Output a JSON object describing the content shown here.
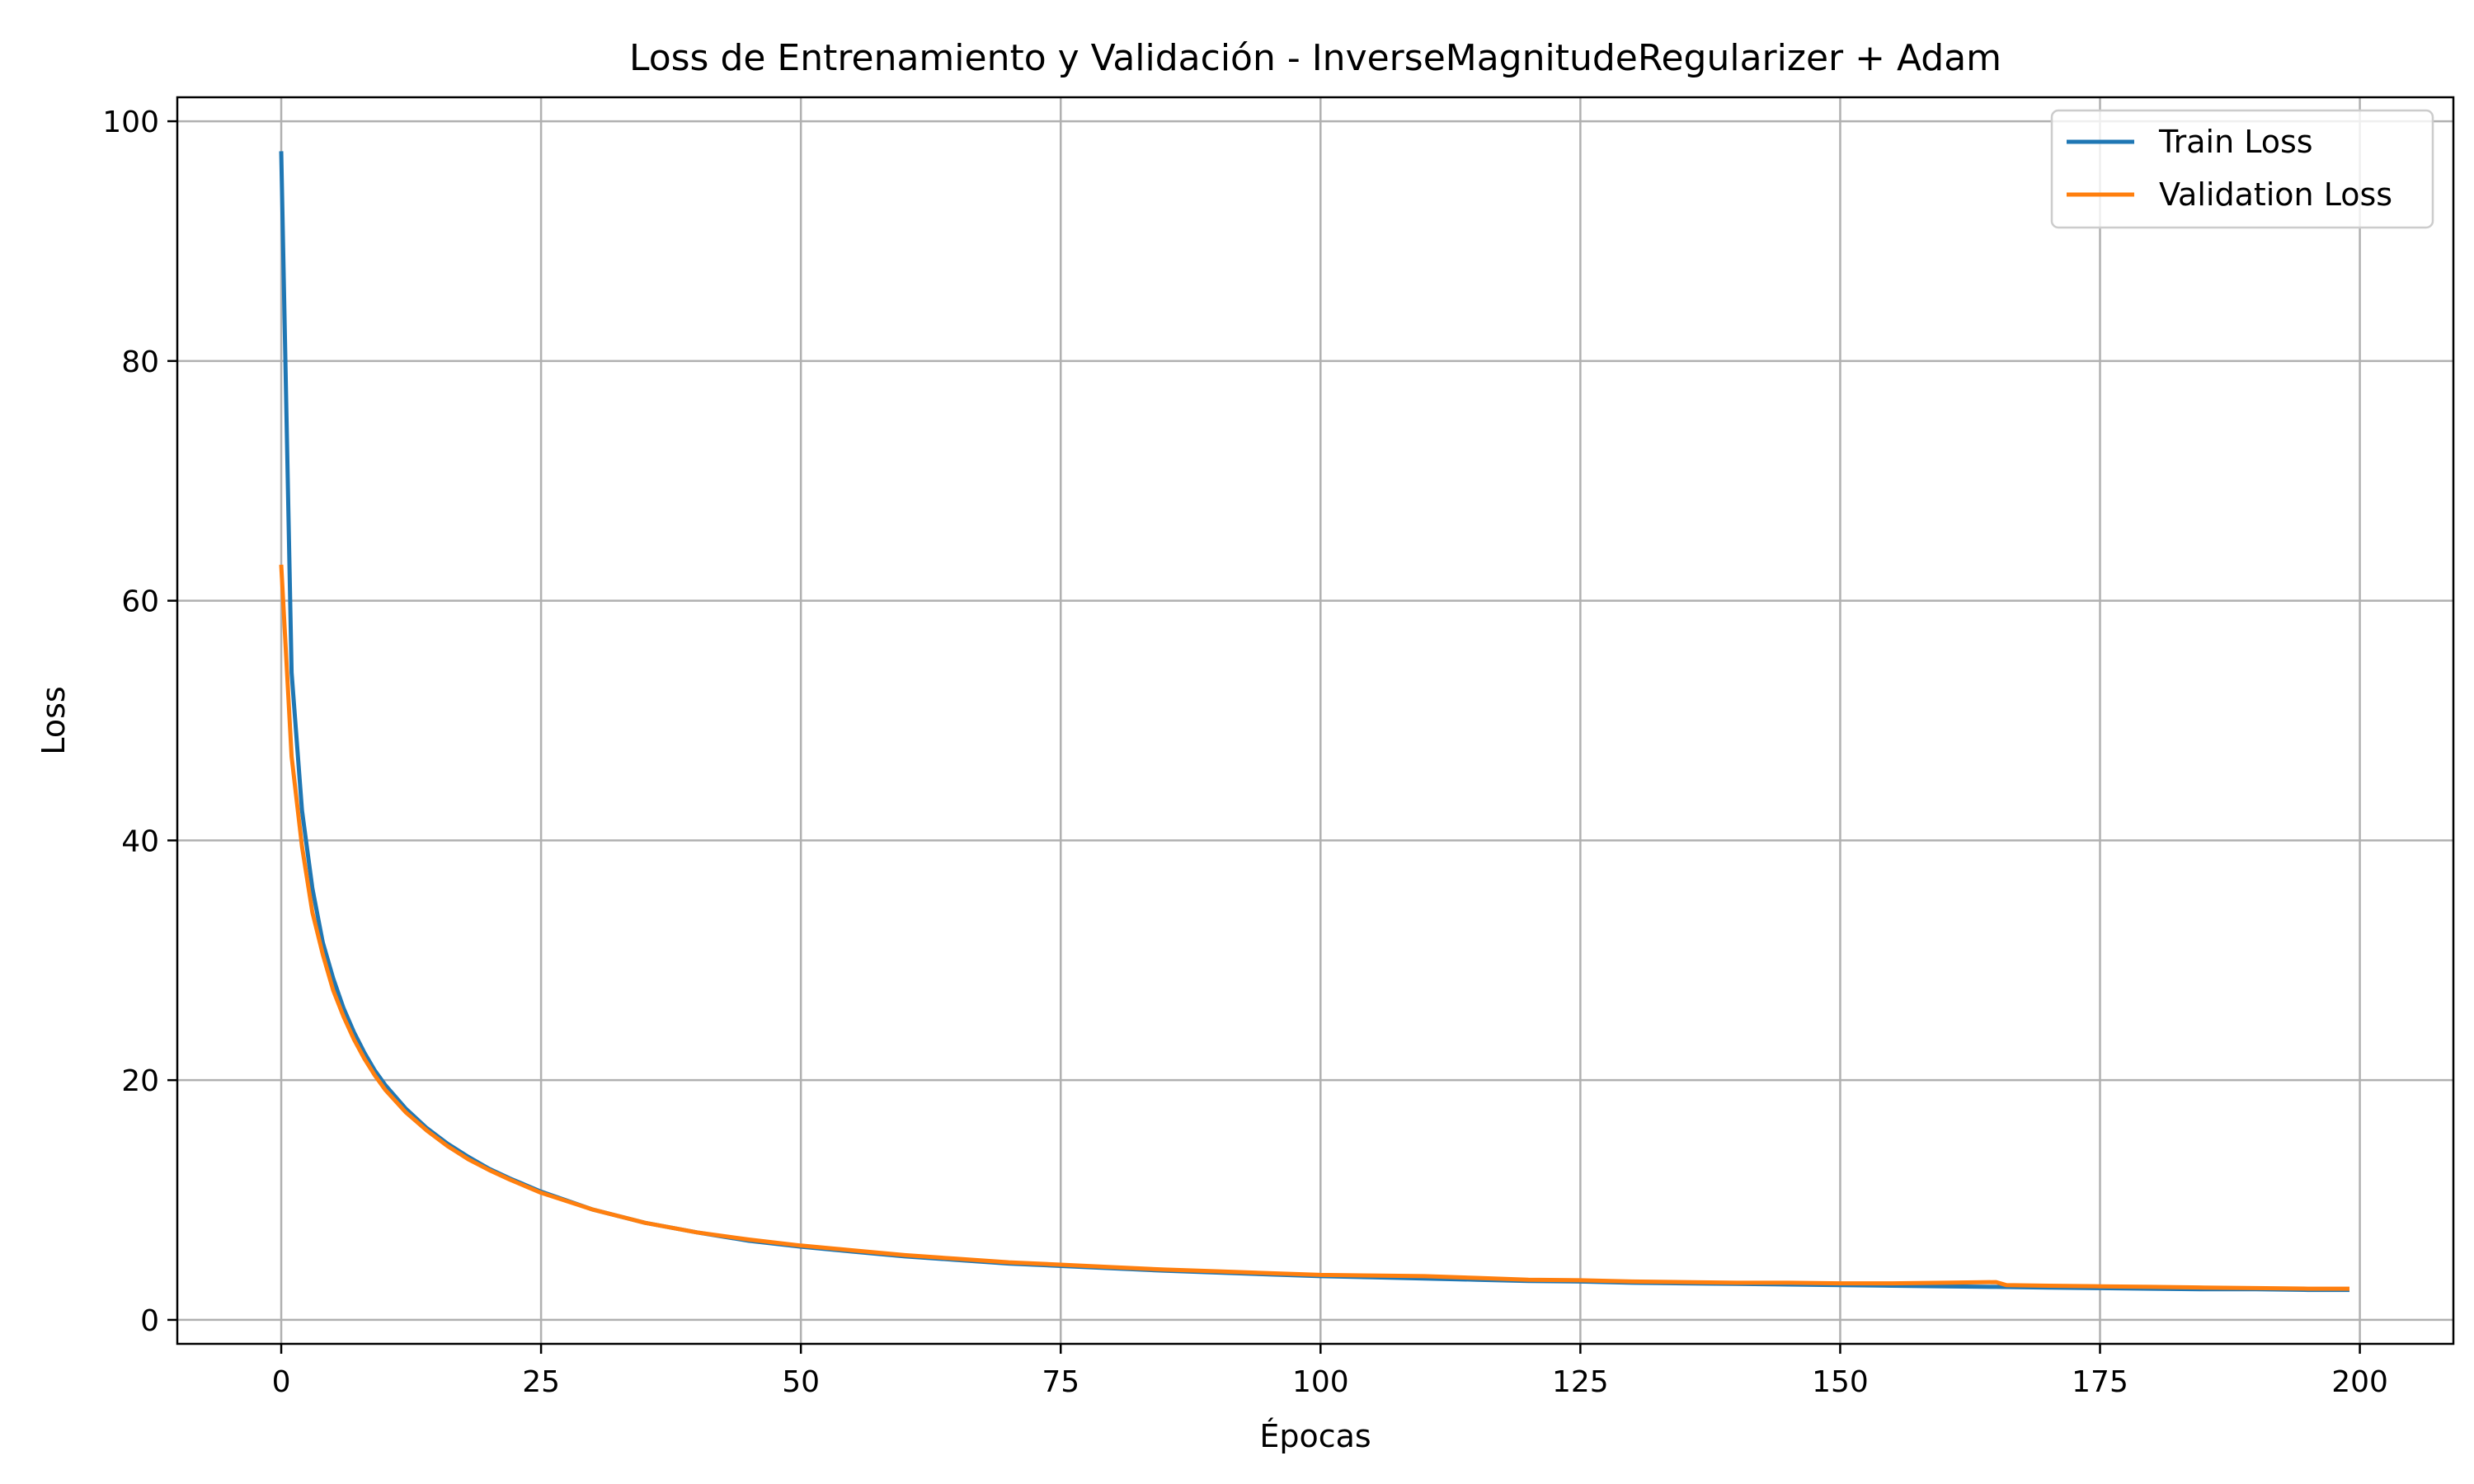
{
  "chart_data": {
    "type": "line",
    "title": "Loss de Entrenamiento y Validación - InverseMagnitudeRegularizer + Adam",
    "xlabel": "Épocas",
    "ylabel": "Loss",
    "xlim": [
      -10,
      209
    ],
    "ylim": [
      -2,
      102
    ],
    "xticks": [
      0,
      25,
      50,
      75,
      100,
      125,
      150,
      175,
      200
    ],
    "yticks": [
      0,
      20,
      40,
      60,
      80,
      100
    ],
    "grid": true,
    "legend": "top-right",
    "series": [
      {
        "name": "Train Loss",
        "color": "#1f77b4",
        "points": [
          [
            0,
            97.5
          ],
          [
            1,
            54.0
          ],
          [
            2,
            42.5
          ],
          [
            3,
            36.0
          ],
          [
            4,
            31.5
          ],
          [
            5,
            28.5
          ],
          [
            6,
            26.0
          ],
          [
            7,
            24.0
          ],
          [
            8,
            22.3
          ],
          [
            9,
            20.8
          ],
          [
            10,
            19.6
          ],
          [
            12,
            17.6
          ],
          [
            14,
            16.0
          ],
          [
            16,
            14.7
          ],
          [
            18,
            13.6
          ],
          [
            20,
            12.6
          ],
          [
            22,
            11.8
          ],
          [
            25,
            10.7
          ],
          [
            30,
            9.2
          ],
          [
            35,
            8.1
          ],
          [
            40,
            7.3
          ],
          [
            45,
            6.6
          ],
          [
            50,
            6.1
          ],
          [
            55,
            5.7
          ],
          [
            60,
            5.3
          ],
          [
            65,
            5.0
          ],
          [
            70,
            4.7
          ],
          [
            75,
            4.5
          ],
          [
            80,
            4.3
          ],
          [
            85,
            4.1
          ],
          [
            90,
            3.95
          ],
          [
            95,
            3.8
          ],
          [
            100,
            3.65
          ],
          [
            105,
            3.55
          ],
          [
            110,
            3.45
          ],
          [
            115,
            3.35
          ],
          [
            120,
            3.25
          ],
          [
            125,
            3.2
          ],
          [
            130,
            3.1
          ],
          [
            135,
            3.05
          ],
          [
            140,
            3.0
          ],
          [
            145,
            2.95
          ],
          [
            150,
            2.9
          ],
          [
            155,
            2.85
          ],
          [
            160,
            2.8
          ],
          [
            165,
            2.75
          ],
          [
            170,
            2.7
          ],
          [
            175,
            2.65
          ],
          [
            180,
            2.6
          ],
          [
            185,
            2.55
          ],
          [
            190,
            2.55
          ],
          [
            195,
            2.5
          ],
          [
            199,
            2.5
          ]
        ]
      },
      {
        "name": "Validation Loss",
        "color": "#ff7f0e",
        "points": [
          [
            0,
            63.0
          ],
          [
            1,
            47.0
          ],
          [
            2,
            39.5
          ],
          [
            3,
            34.0
          ],
          [
            4,
            30.5
          ],
          [
            5,
            27.5
          ],
          [
            6,
            25.3
          ],
          [
            7,
            23.4
          ],
          [
            8,
            21.8
          ],
          [
            9,
            20.4
          ],
          [
            10,
            19.2
          ],
          [
            12,
            17.3
          ],
          [
            14,
            15.8
          ],
          [
            16,
            14.5
          ],
          [
            18,
            13.4
          ],
          [
            20,
            12.5
          ],
          [
            22,
            11.7
          ],
          [
            25,
            10.6
          ],
          [
            30,
            9.2
          ],
          [
            35,
            8.1
          ],
          [
            40,
            7.3
          ],
          [
            45,
            6.7
          ],
          [
            50,
            6.2
          ],
          [
            55,
            5.8
          ],
          [
            60,
            5.4
          ],
          [
            65,
            5.1
          ],
          [
            70,
            4.8
          ],
          [
            75,
            4.6
          ],
          [
            80,
            4.4
          ],
          [
            85,
            4.2
          ],
          [
            90,
            4.05
          ],
          [
            95,
            3.9
          ],
          [
            100,
            3.75
          ],
          [
            105,
            3.7
          ],
          [
            110,
            3.65
          ],
          [
            115,
            3.5
          ],
          [
            120,
            3.35
          ],
          [
            125,
            3.3
          ],
          [
            130,
            3.2
          ],
          [
            135,
            3.15
          ],
          [
            140,
            3.1
          ],
          [
            145,
            3.1
          ],
          [
            150,
            3.05
          ],
          [
            155,
            3.05
          ],
          [
            160,
            3.1
          ],
          [
            165,
            3.15
          ],
          [
            166,
            2.9
          ],
          [
            170,
            2.85
          ],
          [
            175,
            2.8
          ],
          [
            180,
            2.75
          ],
          [
            185,
            2.7
          ],
          [
            190,
            2.65
          ],
          [
            195,
            2.6
          ],
          [
            199,
            2.6
          ]
        ]
      }
    ]
  }
}
